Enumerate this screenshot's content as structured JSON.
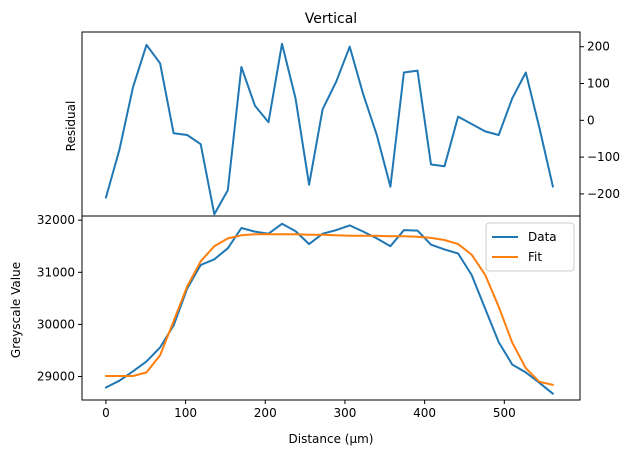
{
  "chart_data": [
    {
      "type": "line",
      "title": "Vertical",
      "ylabel": "Residual",
      "y_axis_side": "right",
      "ylim": [
        -260,
        240
      ],
      "yticks": [
        -200,
        -100,
        0,
        100,
        200
      ],
      "xlim": [
        -30,
        595
      ],
      "series": [
        {
          "color": "#1f77b4",
          "x": [
            0,
            17,
            34,
            51,
            68,
            85,
            102,
            119,
            136,
            153,
            170,
            187,
            204,
            221,
            238,
            255,
            272,
            289,
            306,
            323,
            340,
            357,
            374,
            391,
            408,
            425,
            442,
            459,
            476,
            493,
            510,
            527,
            544,
            561
          ],
          "y": [
            -210,
            -80,
            90,
            205,
            155,
            -35,
            -40,
            -65,
            -255,
            -190,
            145,
            40,
            -5,
            208,
            60,
            -175,
            30,
            105,
            200,
            70,
            -40,
            -180,
            130,
            135,
            -120,
            -125,
            10,
            -10,
            -30,
            -40,
            60,
            130,
            -20,
            -180
          ]
        }
      ]
    },
    {
      "type": "line",
      "xlabel": "Distance (μm)",
      "ylabel": "Greyscale Value",
      "ylim": [
        28550,
        32080
      ],
      "yticks": [
        29000,
        30000,
        31000,
        32000
      ],
      "xlim": [
        -30,
        595
      ],
      "xticks": [
        0,
        100,
        200,
        300,
        400,
        500
      ],
      "legend": "top-right",
      "series": [
        {
          "name": "Data",
          "color": "#1f77b4",
          "x": [
            0,
            17,
            34,
            51,
            68,
            85,
            102,
            119,
            136,
            153,
            170,
            187,
            204,
            221,
            238,
            255,
            272,
            289,
            306,
            323,
            340,
            357,
            374,
            391,
            408,
            425,
            442,
            459,
            476,
            493,
            510,
            527,
            544,
            561
          ],
          "y": [
            28790,
            28920,
            29100,
            29290,
            29560,
            29980,
            30690,
            31140,
            31250,
            31460,
            31850,
            31780,
            31740,
            31930,
            31790,
            31540,
            31740,
            31810,
            31900,
            31780,
            31650,
            31500,
            31810,
            31800,
            31530,
            31440,
            31360,
            30950,
            30300,
            29660,
            29230,
            29080,
            28880,
            28670
          ]
        },
        {
          "name": "Fit",
          "color": "#ff7f0e",
          "x": [
            0,
            17,
            34,
            51,
            68,
            85,
            102,
            119,
            136,
            153,
            170,
            187,
            204,
            221,
            238,
            255,
            272,
            289,
            306,
            323,
            340,
            357,
            374,
            391,
            408,
            425,
            442,
            459,
            476,
            493,
            510,
            527,
            544,
            561
          ],
          "y": [
            29010,
            29010,
            29010,
            29080,
            29410,
            30060,
            30730,
            31210,
            31500,
            31650,
            31710,
            31730,
            31730,
            31730,
            31730,
            31720,
            31720,
            31710,
            31700,
            31700,
            31700,
            31690,
            31690,
            31680,
            31660,
            31620,
            31540,
            31340,
            30950,
            30340,
            29650,
            29160,
            28900,
            28840
          ]
        }
      ]
    }
  ]
}
